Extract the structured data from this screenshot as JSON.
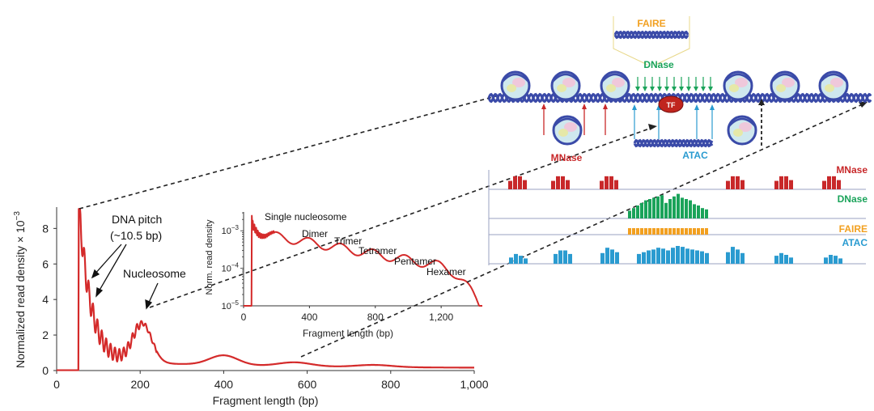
{
  "colors": {
    "curve": "#d42a2a",
    "mnase": "#c8282a",
    "dnase": "#1aa35a",
    "faire": "#f2a020",
    "atac": "#2a9bd0",
    "dna": "#3a4aa8",
    "axis": "#333333"
  },
  "main_chart": {
    "type": "line",
    "ylabel": "Normalized read density × 10",
    "ylabel_exp": "−3",
    "xlabel": "Fragment length (bp)",
    "xlim": [
      0,
      1000
    ],
    "ylim": [
      0,
      9.2
    ],
    "x_ticks": [
      0,
      200,
      400,
      600,
      800,
      1000
    ],
    "x_tick_labels": [
      "0",
      "200",
      "400",
      "600",
      "800",
      "1,000"
    ],
    "y_ticks": [
      0,
      2,
      4,
      6,
      8
    ],
    "y_tick_labels": [
      "0",
      "2",
      "4",
      "6",
      "8"
    ],
    "annotations": {
      "dna_pitch_line1": "DNA pitch",
      "dna_pitch_line2": "(~10.5 bp)",
      "nucleosome": "Nucleosome"
    }
  },
  "inset_chart": {
    "type": "line",
    "scale": "log",
    "ylabel": "Norm. read density",
    "xlabel": "Fragment length (bp)",
    "xlim": [
      0,
      1450
    ],
    "ylim_log": [
      -5,
      -2.5
    ],
    "x_ticks": [
      0,
      400,
      800,
      1200
    ],
    "x_tick_labels": [
      "0",
      "400",
      "800",
      "1,200"
    ],
    "y_tick_labels": [
      {
        "base": "10",
        "exp": "−3",
        "value": -3
      },
      {
        "base": "10",
        "exp": "−4",
        "value": -4
      },
      {
        "base": "10",
        "exp": "−5",
        "value": -5
      }
    ],
    "peak_labels": [
      "Single nucleosome",
      "Dimer",
      "Trimer",
      "Tetramer",
      "Pentamer",
      "Hexamer"
    ]
  },
  "schematic": {
    "faire_label": "FAIRE",
    "dnase_label": "DNase",
    "mnase_label": "MNase",
    "atac_label": "ATAC",
    "tf_label": "TF"
  },
  "tracks": [
    {
      "name": "MNase",
      "values": [
        [
          0.55,
          0.85,
          0.85,
          0.6
        ],
        [
          0.55,
          0.85,
          0.85,
          0.6
        ],
        [
          0.55,
          0.85,
          0.85,
          0.6
        ],
        [
          0.55,
          0.85,
          0.85,
          0.6
        ],
        [
          0.55,
          0.85,
          0.85,
          0.6
        ],
        [
          0.55,
          0.85,
          0.85,
          0.6
        ]
      ]
    },
    {
      "name": "DNase",
      "values": [
        [
          0.3,
          0.4,
          0.5,
          0.6,
          0.7,
          0.75,
          0.8,
          0.85,
          0.9,
          0.6,
          0.75,
          0.85,
          0.95,
          0.8,
          0.75,
          0.7,
          0.55,
          0.5,
          0.4,
          0.35
        ]
      ]
    },
    {
      "name": "FAIRE",
      "values": [
        [
          1,
          1,
          1,
          1,
          1,
          1,
          1,
          1,
          1,
          1,
          1,
          1,
          1,
          1,
          1,
          1,
          1,
          1,
          1,
          1
        ]
      ]
    },
    {
      "name": "ATAC",
      "values": [
        [
          0.35,
          0.55,
          0.45,
          0.3
        ],
        [
          0.55,
          0.75,
          0.75,
          0.55
        ],
        [
          0.6,
          0.9,
          0.8,
          0.65
        ],
        [
          0.55,
          0.65,
          0.75,
          0.8,
          0.9,
          0.85,
          0.75,
          0.9,
          1,
          0.95,
          0.85,
          0.8,
          0.75,
          0.7,
          0.6
        ],
        [
          0.65,
          0.95,
          0.8,
          0.6
        ],
        [
          0.45,
          0.6,
          0.5,
          0.35
        ],
        [
          0.35,
          0.5,
          0.45,
          0.3
        ]
      ]
    }
  ]
}
